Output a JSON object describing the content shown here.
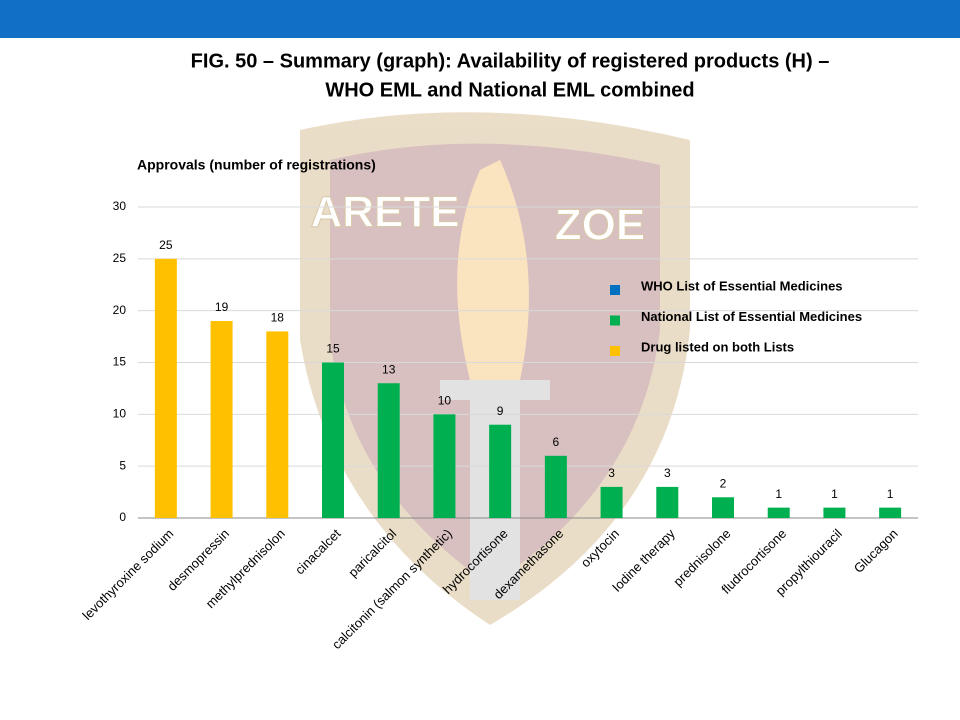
{
  "chart_data": {
    "type": "bar",
    "title_lines": [
      "FIG. 50 – Summary (graph): Availability of registered products (H) –",
      "WHO EML and National EML combined"
    ],
    "y_axis_label": "Approvals (number of registrations)",
    "watermark": [
      "ARETE",
      "ZOE"
    ],
    "categories": [
      "levothyroxine sodium",
      "desmopressin",
      "methylprednisolon",
      "cinacalcet",
      "paricalcitol",
      "calcitonin (salmon synthetic)",
      "hydrocortisone",
      "dexamethasone",
      "oxytocin",
      "Iodine therapy",
      "prednisolone",
      "fludrocortisone",
      "propylthiouracil",
      "Glucagon"
    ],
    "values": [
      25,
      19,
      18,
      15,
      13,
      10,
      9,
      6,
      3,
      3,
      2,
      1,
      1,
      1
    ],
    "colors": [
      "#FFC000",
      "#FFC000",
      "#FFC000",
      "#00B050",
      "#00B050",
      "#00B050",
      "#00B050",
      "#00B050",
      "#00B050",
      "#00B050",
      "#00B050",
      "#00B050",
      "#00B050",
      "#00B050"
    ],
    "legend": [
      {
        "name": "WHO List of Essential Medicines",
        "color": "#0070C0"
      },
      {
        "name": "National List of Essential Medicines",
        "color": "#00B050"
      },
      {
        "name": "Drug listed on both Lists",
        "color": "#FFC000"
      }
    ],
    "ylim": [
      0,
      30
    ],
    "yticks": [
      0,
      5,
      10,
      15,
      20,
      25,
      30
    ],
    "grid": true
  }
}
